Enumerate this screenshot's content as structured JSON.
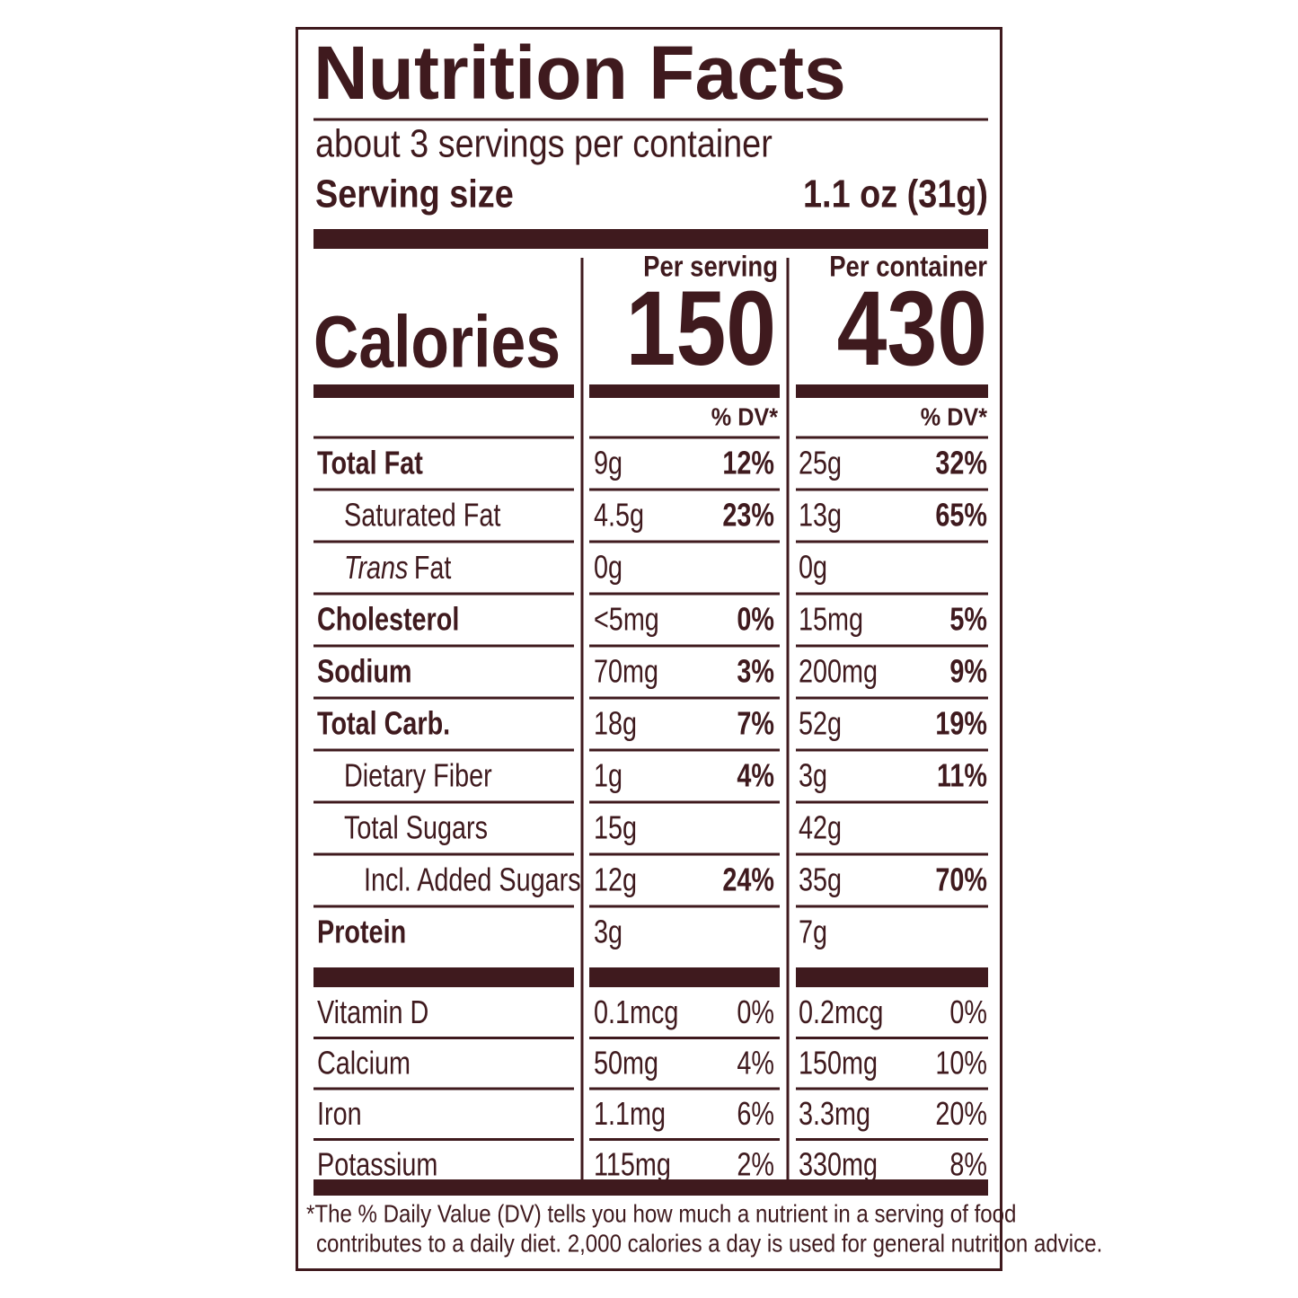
{
  "label": {
    "title": "Nutrition Facts",
    "servings": "about 3 servings per container",
    "serving_size": {
      "label": "Serving size",
      "value": "1.1 oz (31g)"
    },
    "columns": [
      "Per serving",
      "Per container"
    ],
    "calories": {
      "label": "Calories",
      "values": [
        "150",
        "430"
      ]
    },
    "dv_header": [
      "% DV*",
      "% DV*"
    ],
    "rows": [
      {
        "name": "Total Fat",
        "style": "bold",
        "indent": 0,
        "cells": [
          [
            "9g",
            "12%"
          ],
          [
            "25g",
            "32%"
          ]
        ]
      },
      {
        "name": "Saturated Fat",
        "style": "normal",
        "indent": 1,
        "cells": [
          [
            "4.5g",
            "23%"
          ],
          [
            "13g",
            "65%"
          ]
        ]
      },
      {
        "italic_prefix": "Trans",
        "name": "Fat",
        "style": "normal",
        "indent": 1,
        "cells": [
          [
            "0g",
            null
          ],
          [
            "0g",
            null
          ]
        ]
      },
      {
        "name": "Cholesterol",
        "style": "bold",
        "indent": 0,
        "cells": [
          [
            "<5mg",
            "0%"
          ],
          [
            "15mg",
            "5%"
          ]
        ]
      },
      {
        "name": "Sodium",
        "style": "bold",
        "indent": 0,
        "cells": [
          [
            "70mg",
            "3%"
          ],
          [
            "200mg",
            "9%"
          ]
        ]
      },
      {
        "name": "Total Carb.",
        "style": "bold",
        "indent": 0,
        "cells": [
          [
            "18g",
            "7%"
          ],
          [
            "52g",
            "19%"
          ]
        ]
      },
      {
        "name": "Dietary Fiber",
        "style": "normal",
        "indent": 1,
        "cells": [
          [
            "1g",
            "4%"
          ],
          [
            "3g",
            "11%"
          ]
        ]
      },
      {
        "name": "Total Sugars",
        "style": "normal",
        "indent": 1,
        "cells": [
          [
            "15g",
            null
          ],
          [
            "42g",
            null
          ]
        ]
      },
      {
        "name": "Incl. Added Sugars",
        "style": "normal",
        "indent": 2,
        "cells": [
          [
            "12g",
            "24%"
          ],
          [
            "35g",
            "70%"
          ]
        ]
      },
      {
        "name": "Protein",
        "style": "bold",
        "indent": 0,
        "cells": [
          [
            "3g",
            null
          ],
          [
            "7g",
            null
          ]
        ]
      }
    ],
    "vitamins": [
      {
        "name": "Vitamin D",
        "cells": [
          [
            "0.1mcg",
            "0%"
          ],
          [
            "0.2mcg",
            "0%"
          ]
        ]
      },
      {
        "name": "Calcium",
        "cells": [
          [
            "50mg",
            "4%"
          ],
          [
            "150mg",
            "10%"
          ]
        ]
      },
      {
        "name": "Iron",
        "cells": [
          [
            "1.1mg",
            "6%"
          ],
          [
            "3.3mg",
            "20%"
          ]
        ]
      },
      {
        "name": "Potassium",
        "cells": [
          [
            "115mg",
            "2%"
          ],
          [
            "330mg",
            "8%"
          ]
        ]
      }
    ],
    "footnote": [
      "*The % Daily Value (DV) tells you how much a nutrient in a serving of food",
      "contributes to a daily diet. 2,000 calories a day is used for general nutrition advice."
    ]
  }
}
